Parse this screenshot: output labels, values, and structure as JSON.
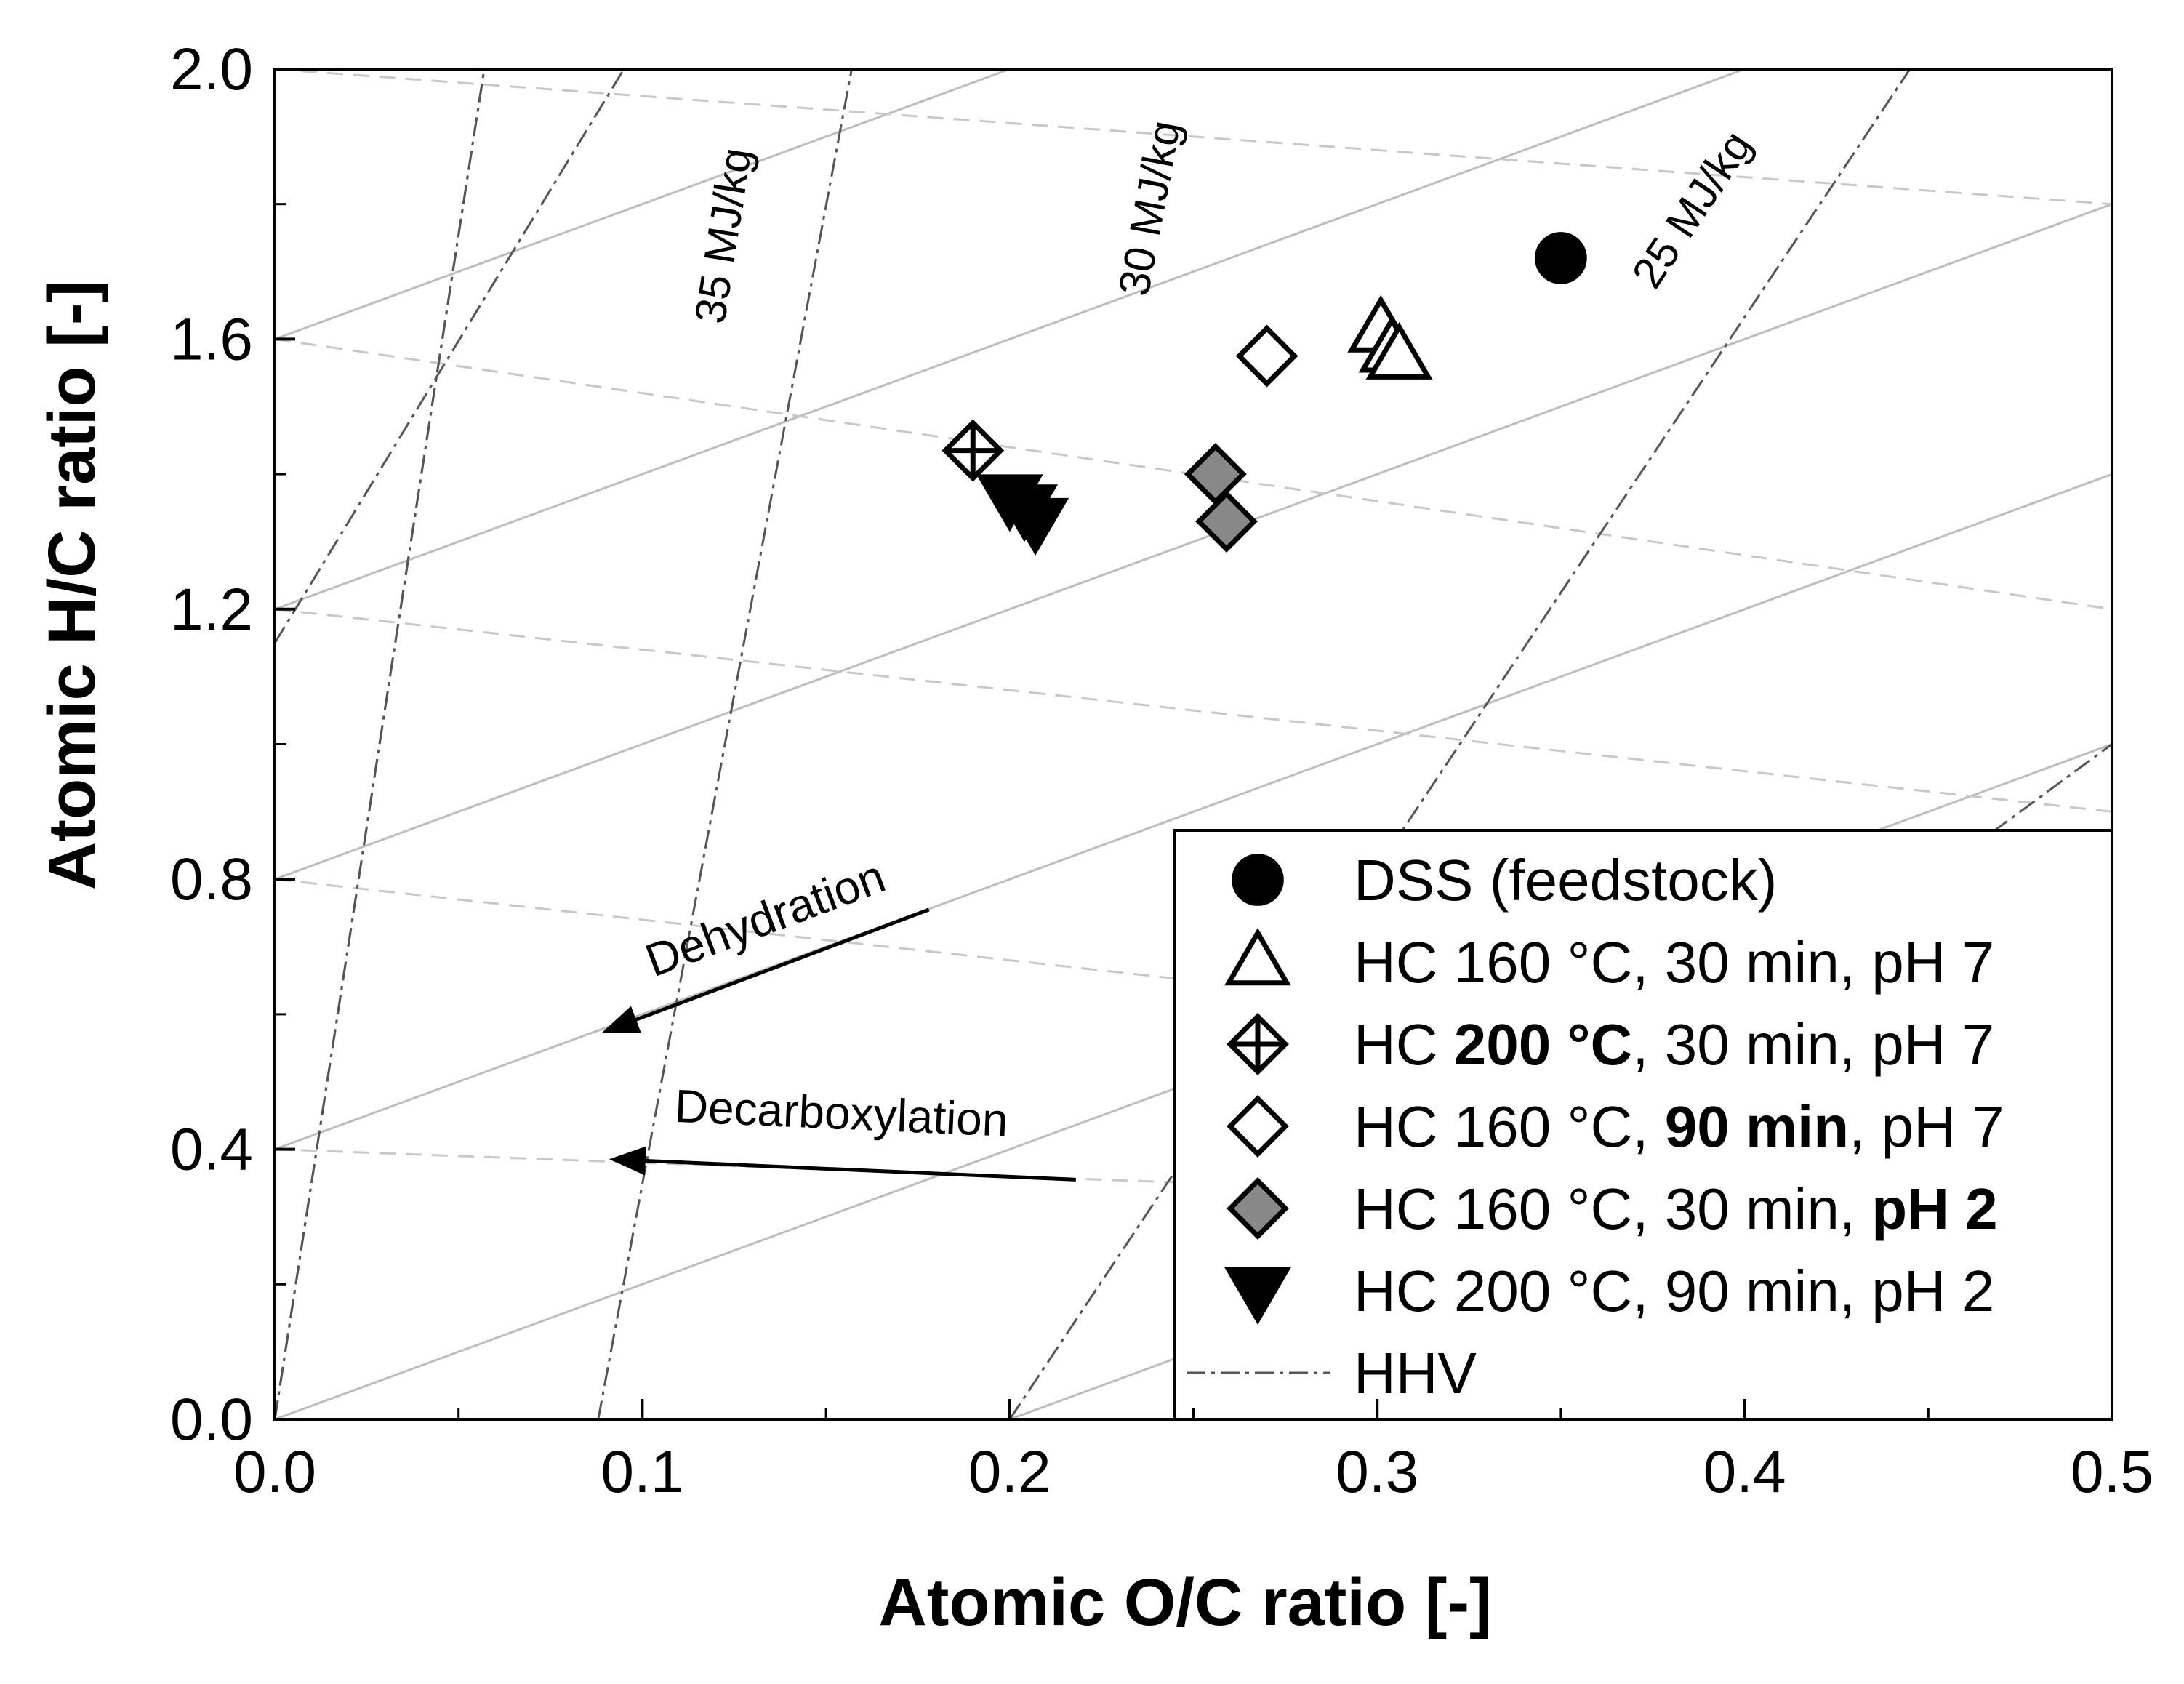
{
  "chart_data": {
    "type": "scatter",
    "title": "",
    "xlabel": "Atomic O/C ratio [-]",
    "ylabel": "Atomic H/C ratio [-]",
    "xlim": [
      0.0,
      0.5
    ],
    "ylim": [
      0.0,
      2.0
    ],
    "x_ticks": [
      "0.0",
      "0.1",
      "0.2",
      "0.3",
      "0.4",
      "0.5"
    ],
    "y_ticks": [
      "0.0",
      "0.4",
      "0.8",
      "1.2",
      "1.6",
      "2.0"
    ],
    "x_tick_values": [
      0.0,
      0.1,
      0.2,
      0.3,
      0.4,
      0.5
    ],
    "y_tick_values": [
      0.0,
      0.4,
      0.8,
      1.2,
      1.6,
      2.0
    ],
    "x_minor_ticks": [
      0.05,
      0.15,
      0.25,
      0.35,
      0.45
    ],
    "y_minor_ticks": [
      0.2,
      0.6,
      1.0,
      1.4,
      1.8
    ],
    "series": [
      {
        "name": "DSS (feedstock)",
        "marker": "circle",
        "fill": "#000000",
        "points": [
          {
            "x": 0.35,
            "y": 1.72
          }
        ]
      },
      {
        "name": "HC 160 °C, 30 min, pH 7",
        "marker": "triangle-up",
        "fill": "#ffffff",
        "points": [
          {
            "x": 0.301,
            "y": 1.615
          },
          {
            "x": 0.304,
            "y": 1.585
          },
          {
            "x": 0.306,
            "y": 1.575
          }
        ]
      },
      {
        "name": "HC 200 °C, 30 min, pH 7",
        "marker": "diamond-plus",
        "fill": "#ffffff",
        "points": [
          {
            "x": 0.19,
            "y": 1.435
          }
        ]
      },
      {
        "name": "HC 160 °C, 90 min, pH 7",
        "marker": "diamond",
        "fill": "#ffffff",
        "points": [
          {
            "x": 0.27,
            "y": 1.575
          }
        ]
      },
      {
        "name": "HC 160 °C, 30 min, pH 2",
        "marker": "diamond",
        "fill": "#888888",
        "points": [
          {
            "x": 0.256,
            "y": 1.4
          },
          {
            "x": 0.259,
            "y": 1.33
          }
        ]
      },
      {
        "name": "HC 200 °C, 90 min, pH 2",
        "marker": "triangle-down",
        "fill": "#000000",
        "points": [
          {
            "x": 0.2,
            "y": 1.365
          },
          {
            "x": 0.204,
            "y": 1.35
          },
          {
            "x": 0.207,
            "y": 1.33
          }
        ]
      }
    ],
    "hhv_lines": [
      {
        "label": "35 MJ/kg",
        "p1": [
          0.0,
          0.0
        ],
        "p2": [
          0.057,
          2.0
        ]
      },
      {
        "label": "30 MJ/kg",
        "p1": [
          0.088,
          0.0
        ],
        "p2": [
          0.157,
          2.0
        ]
      },
      {
        "label": "25 MJ/kg",
        "p1": [
          0.2,
          0.0
        ],
        "p2": [
          0.445,
          2.0
        ]
      },
      {
        "label": "",
        "p1": [
          0.0,
          0.0
        ],
        "p2": [
          0.057,
          2.0
        ]
      }
    ],
    "dehydration_lines": [
      {
        "p1": [
          0.0,
          0.0
        ],
        "p2": [
          0.5,
          1.0
        ]
      },
      {
        "p1": [
          0.0,
          0.4
        ],
        "p2": [
          0.5,
          1.4
        ]
      },
      {
        "p1": [
          0.0,
          0.8
        ],
        "p2": [
          0.5,
          1.8
        ]
      },
      {
        "p1": [
          0.0,
          1.2
        ],
        "p2": [
          0.4,
          2.0
        ]
      },
      {
        "p1": [
          0.0,
          1.6
        ],
        "p2": [
          0.2,
          2.0
        ]
      },
      {
        "p1": [
          0.2,
          0.0
        ],
        "p2": [
          0.5,
          0.6
        ]
      },
      {
        "p1": [
          0.4,
          0.0
        ],
        "p2": [
          0.5,
          0.2
        ]
      }
    ],
    "decarboxylation_lines": [
      {
        "p1": [
          0.0,
          0.4
        ],
        "p2": [
          0.5,
          0.3
        ]
      },
      {
        "p1": [
          0.0,
          0.8
        ],
        "p2": [
          0.5,
          0.5
        ]
      },
      {
        "p1": [
          0.0,
          1.2
        ],
        "p2": [
          0.5,
          0.9
        ]
      },
      {
        "p1": [
          0.0,
          1.6
        ],
        "p2": [
          0.5,
          1.2
        ]
      },
      {
        "p1": [
          0.0,
          2.0
        ],
        "p2": [
          0.5,
          1.8
        ]
      }
    ],
    "annotations": [
      {
        "text": "Dehydration",
        "from": [
          0.178,
          0.755
        ],
        "to": [
          0.09,
          0.575
        ]
      },
      {
        "text": "Decarboxylation",
        "from": [
          0.218,
          0.355
        ],
        "to": [
          0.092,
          0.385
        ]
      }
    ],
    "legend": {
      "placement": "bottom-right",
      "entries": [
        {
          "parts": [
            {
              "t": "DSS (feedstock)",
              "b": false
            }
          ]
        },
        {
          "parts": [
            {
              "t": "HC 160 °C, 30 min, pH 7",
              "b": false
            }
          ]
        },
        {
          "parts": [
            {
              "t": "HC ",
              "b": false
            },
            {
              "t": "200 °C",
              "b": true
            },
            {
              "t": ", 30 min, pH 7",
              "b": false
            }
          ]
        },
        {
          "parts": [
            {
              "t": "HC 160 °C, ",
              "b": false
            },
            {
              "t": "90 min",
              "b": true
            },
            {
              "t": ", pH 7",
              "b": false
            }
          ]
        },
        {
          "parts": [
            {
              "t": "HC 160 °C, 30 min, ",
              "b": false
            },
            {
              "t": "pH 2",
              "b": true
            }
          ]
        },
        {
          "parts": [
            {
              "t": "HC 200 °C, 90 min, pH 2",
              "b": false
            }
          ]
        },
        {
          "parts": [
            {
              "t": "HHV",
              "b": false
            }
          ]
        }
      ]
    },
    "colors": {
      "hhv_line": "#555555",
      "dehydration_line": "#bdbdbd",
      "decarboxylation_line": "#c8c8c8",
      "frame": "#000000"
    }
  }
}
